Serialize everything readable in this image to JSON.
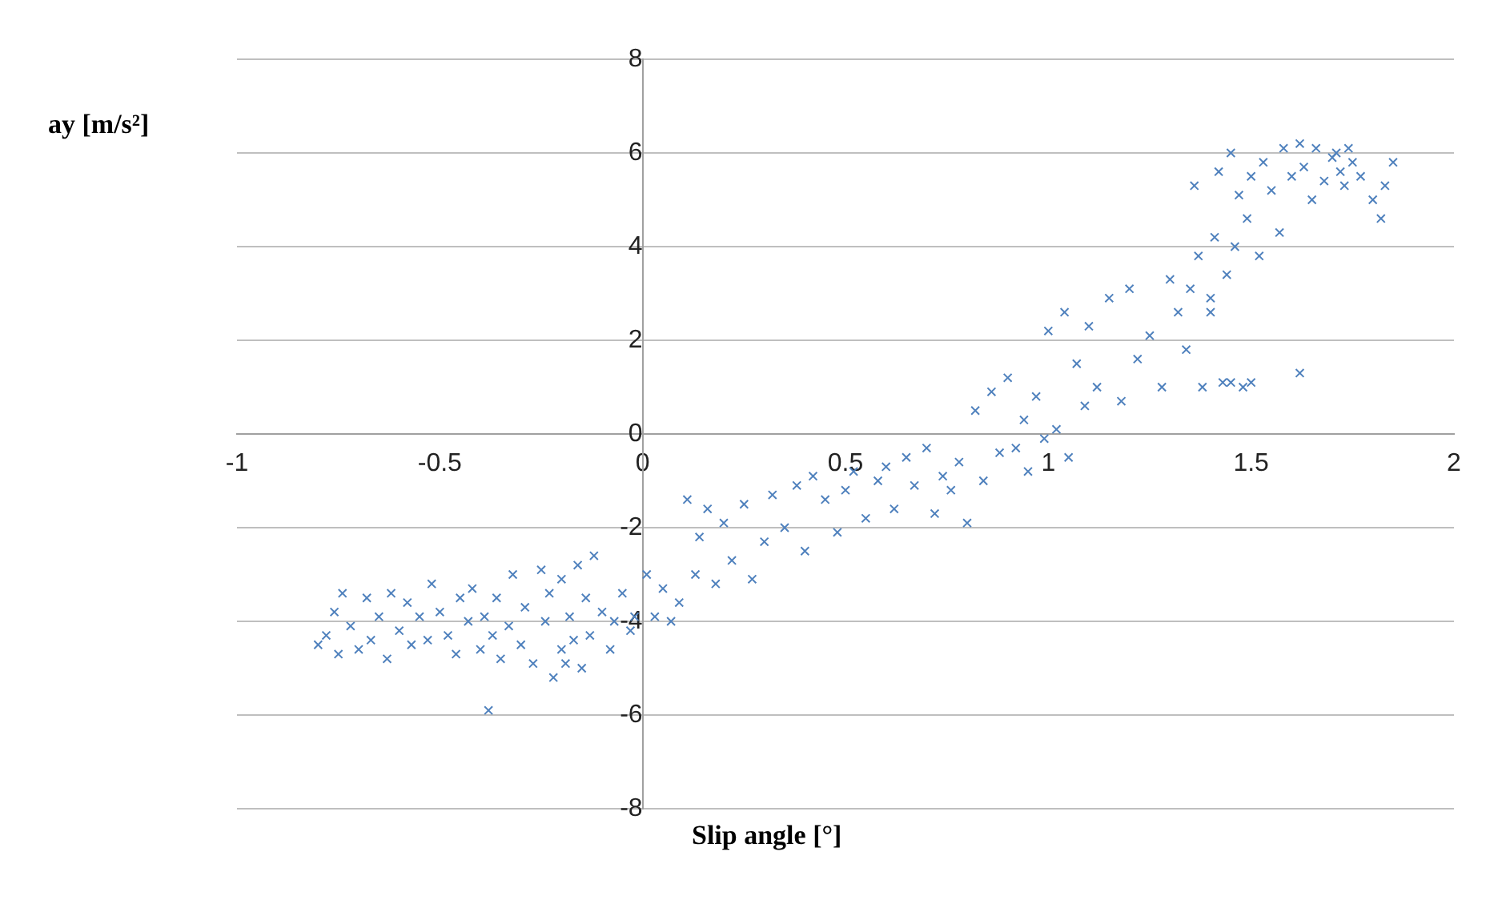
{
  "chart_data": {
    "type": "scatter",
    "xlabel": "Slip angle [°]",
    "ylabel": "ay [m/s²]",
    "marker": "cross",
    "grid": "y",
    "xlim": [
      -1,
      2
    ],
    "ylim": [
      -8,
      8
    ],
    "xticks": [
      -1,
      -0.5,
      0,
      0.5,
      1,
      1.5,
      2
    ],
    "yticks": [
      -8,
      -6,
      -4,
      -2,
      0,
      2,
      4,
      6,
      8
    ],
    "series": [
      {
        "color": "#4f81bd",
        "x": [
          -0.8,
          -0.78,
          -0.76,
          -0.75,
          -0.74,
          -0.72,
          -0.7,
          -0.68,
          -0.67,
          -0.65,
          -0.63,
          -0.62,
          -0.6,
          -0.58,
          -0.57,
          -0.55,
          -0.53,
          -0.52,
          -0.5,
          -0.48,
          -0.46,
          -0.45,
          -0.43,
          -0.42,
          -0.4,
          -0.39,
          -0.38,
          -0.37,
          -0.36,
          -0.35,
          -0.33,
          -0.32,
          -0.3,
          -0.29,
          -0.27,
          -0.25,
          -0.24,
          -0.23,
          -0.22,
          -0.2,
          -0.2,
          -0.19,
          -0.18,
          -0.17,
          -0.16,
          -0.15,
          -0.14,
          -0.13,
          -0.12,
          -0.1,
          -0.08,
          -0.07,
          -0.05,
          -0.03,
          -0.02,
          0.01,
          0.03,
          0.05,
          0.07,
          0.09,
          0.11,
          0.13,
          0.14,
          0.16,
          0.18,
          0.2,
          0.22,
          0.25,
          0.27,
          0.3,
          0.32,
          0.35,
          0.38,
          0.4,
          0.42,
          0.45,
          0.48,
          0.5,
          0.52,
          0.55,
          0.58,
          0.6,
          0.62,
          0.65,
          0.67,
          0.7,
          0.72,
          0.74,
          0.76,
          0.78,
          0.8,
          0.82,
          0.84,
          0.86,
          0.88,
          0.9,
          0.92,
          0.94,
          0.95,
          0.97,
          0.99,
          1.0,
          1.02,
          1.04,
          1.05,
          1.07,
          1.09,
          1.1,
          1.12,
          1.15,
          1.18,
          1.2,
          1.22,
          1.25,
          1.28,
          1.3,
          1.32,
          1.34,
          1.36,
          1.37,
          1.38,
          1.4,
          1.41,
          1.42,
          1.43,
          1.44,
          1.45,
          1.46,
          1.47,
          1.48,
          1.49,
          1.5,
          1.52,
          1.53,
          1.55,
          1.57,
          1.58,
          1.6,
          1.62,
          1.63,
          1.65,
          1.66,
          1.68,
          1.7,
          1.71,
          1.72,
          1.73,
          1.74,
          1.75,
          1.77,
          1.8,
          1.82,
          1.83,
          1.85,
          1.45,
          1.5,
          1.62,
          1.35,
          1.4
        ],
        "values": [
          -4.5,
          -4.3,
          -3.8,
          -4.7,
          -3.4,
          -4.1,
          -4.6,
          -3.5,
          -4.4,
          -3.9,
          -4.8,
          -3.4,
          -4.2,
          -3.6,
          -4.5,
          -3.9,
          -4.4,
          -3.2,
          -3.8,
          -4.3,
          -4.7,
          -3.5,
          -4.0,
          -3.3,
          -4.6,
          -3.9,
          -5.9,
          -4.3,
          -3.5,
          -4.8,
          -4.1,
          -3.0,
          -4.5,
          -3.7,
          -4.9,
          -2.9,
          -4.0,
          -3.4,
          -5.2,
          -4.6,
          -3.1,
          -4.9,
          -3.9,
          -4.4,
          -2.8,
          -5.0,
          -3.5,
          -4.3,
          -2.6,
          -3.8,
          -4.6,
          -4.0,
          -3.4,
          -4.2,
          -3.9,
          -3.0,
          -3.9,
          -3.3,
          -4.0,
          -3.6,
          -1.4,
          -3.0,
          -2.2,
          -1.6,
          -3.2,
          -1.9,
          -2.7,
          -1.5,
          -3.1,
          -2.3,
          -1.3,
          -2.0,
          -1.1,
          -2.5,
          -0.9,
          -1.4,
          -2.1,
          -1.2,
          -0.8,
          -1.8,
          -1.0,
          -0.7,
          -1.6,
          -0.5,
          -1.1,
          -0.3,
          -1.7,
          -0.9,
          -1.2,
          -0.6,
          -1.9,
          0.5,
          -1.0,
          0.9,
          -0.4,
          1.2,
          -0.3,
          0.3,
          -0.8,
          0.8,
          -0.1,
          2.2,
          0.1,
          2.6,
          -0.5,
          1.5,
          0.6,
          2.3,
          1.0,
          2.9,
          0.7,
          3.1,
          1.6,
          2.1,
          1.0,
          3.3,
          2.6,
          1.8,
          5.3,
          3.8,
          1.0,
          2.6,
          4.2,
          5.6,
          1.1,
          3.4,
          6.0,
          4.0,
          5.1,
          1.0,
          4.6,
          5.5,
          3.8,
          5.8,
          5.2,
          4.3,
          6.1,
          5.5,
          6.2,
          5.7,
          5.0,
          6.1,
          5.4,
          5.9,
          6.0,
          5.6,
          5.3,
          6.1,
          5.8,
          5.5,
          5.0,
          4.6,
          5.3,
          5.8,
          1.1,
          1.1,
          1.3,
          3.1,
          2.9
        ]
      }
    ]
  }
}
